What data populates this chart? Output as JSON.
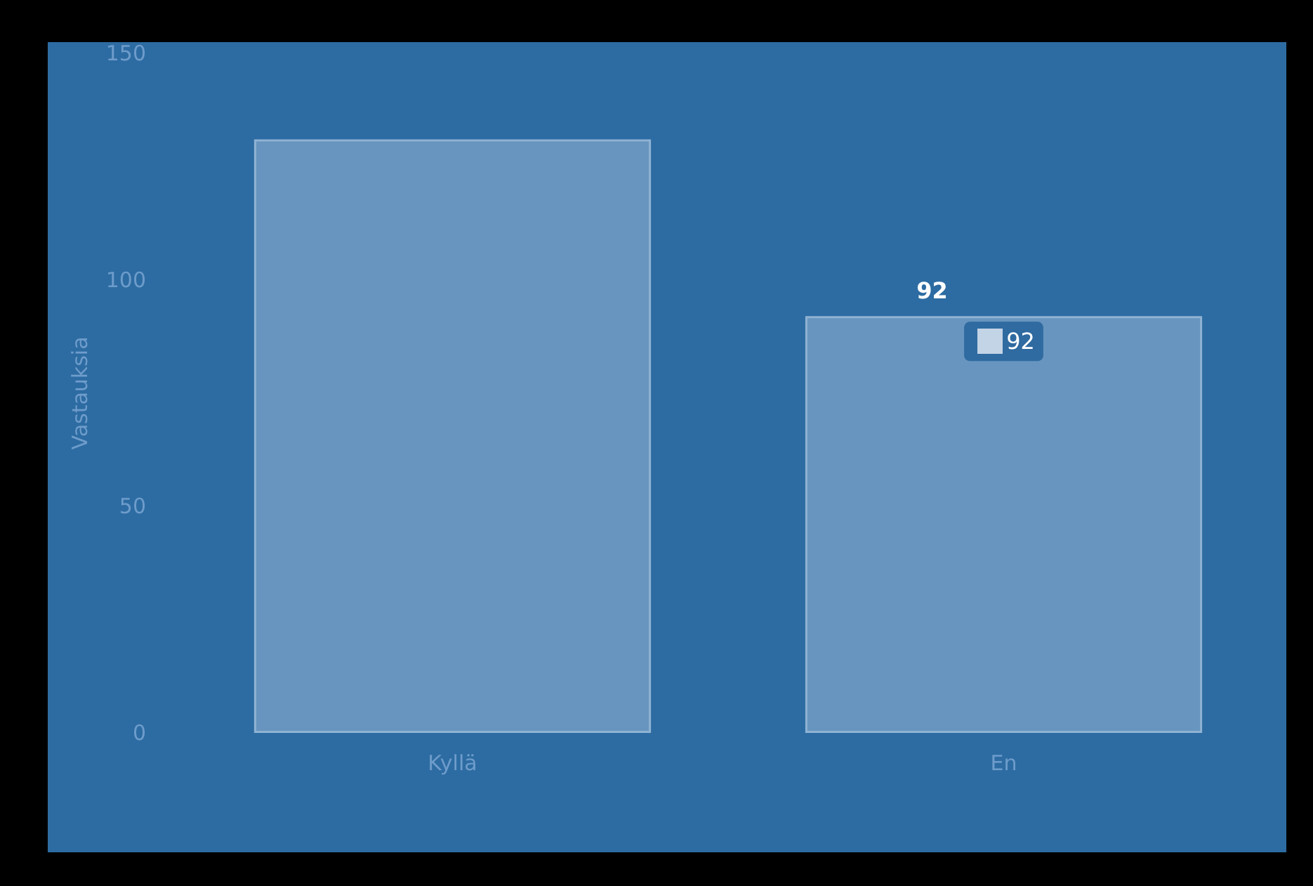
{
  "chart_data": {
    "type": "bar",
    "ylabel": "Vastauksia",
    "categories": [
      "Kyllä",
      "En"
    ],
    "values": [
      131,
      92
    ],
    "value_labels": [
      null,
      "92"
    ],
    "color": "#6795bf",
    "ylim": [
      0,
      150
    ],
    "yticks": [
      0,
      50,
      100,
      150
    ],
    "grid": false,
    "annotations": [
      {
        "text": "92",
        "x": "En",
        "y": 92
      }
    ]
  }
}
